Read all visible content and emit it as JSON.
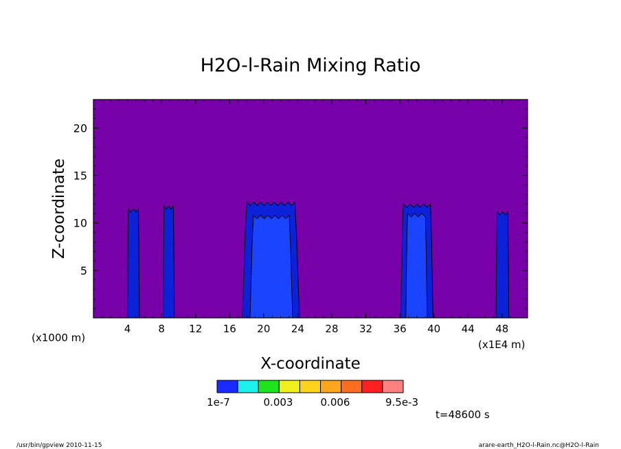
{
  "chart_data": {
    "type": "heatmap",
    "title": "H2O-l-Rain Mixing Ratio",
    "xlabel": "X-coordinate",
    "ylabel": "Z-coordinate",
    "x_unit_left": "(x1000 m)",
    "x_unit_right": "(x1E4 m)",
    "xlim": [
      0,
      51
    ],
    "ylim": [
      0,
      23
    ],
    "x_ticks": [
      "4",
      "8",
      "12",
      "16",
      "20",
      "24",
      "28",
      "32",
      "36",
      "40",
      "44",
      "48"
    ],
    "y_ticks": [
      "5",
      "10",
      "15",
      "20"
    ],
    "time_label": "t=48600 s",
    "colorbar": {
      "colors": [
        "#1a2bff",
        "#1ef0f0",
        "#1ee41e",
        "#f0f01e",
        "#ffd21e",
        "#ffa51e",
        "#ff6e1e",
        "#ff2020",
        "#ff8080"
      ],
      "labels": [
        "1e-7",
        "0.003",
        "0.006",
        "9.5e-3"
      ]
    },
    "background_color": "#7800a8",
    "level1_color": "#0c22d8",
    "level2_color": "#1a44ff",
    "regions": [
      {
        "x_start": 4.0,
        "x_end": 5.4,
        "z_top": 11.5,
        "core_x_start": 0,
        "core_x_end": 0,
        "core_z_top": 0
      },
      {
        "x_start": 8.2,
        "x_end": 9.5,
        "z_top": 11.8,
        "core_x_start": 0,
        "core_x_end": 0,
        "core_z_top": 0
      },
      {
        "x_start": 17.5,
        "x_end": 24.2,
        "z_top": 12.2,
        "core_x_start": 18.4,
        "core_x_end": 23.4,
        "core_z_top": 10.8
      },
      {
        "x_start": 36.1,
        "x_end": 39.9,
        "z_top": 12.0,
        "core_x_start": 36.7,
        "core_x_end": 39.2,
        "core_z_top": 11.0
      },
      {
        "x_start": 47.3,
        "x_end": 48.8,
        "z_top": 11.2,
        "core_x_start": 0,
        "core_x_end": 0,
        "core_z_top": 0
      }
    ]
  },
  "footer": {
    "left": "/usr/bin/gpview  2010-11-15",
    "right": "arare-earth_H2O-l-Rain.nc@H2O-l-Rain"
  }
}
